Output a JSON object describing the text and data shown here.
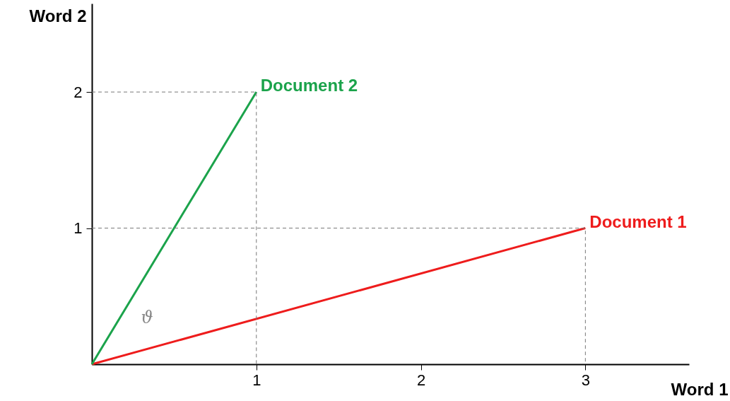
{
  "chart_data": {
    "type": "line",
    "xlabel": "Word 1",
    "ylabel": "Word 2",
    "xlim": [
      0,
      3.63
    ],
    "ylim": [
      0,
      2.65
    ],
    "xticks": [
      1,
      2,
      3
    ],
    "yticks": [
      1,
      2
    ],
    "grid": false,
    "series": [
      {
        "name": "Document 1",
        "color": "#ee1c1c",
        "line_style": "solid",
        "x": [
          0,
          3
        ],
        "values": [
          0,
          1
        ]
      },
      {
        "name": "Document 2",
        "color": "#1ba34b",
        "line_style": "solid",
        "x": [
          0,
          1
        ],
        "values": [
          0,
          2
        ]
      },
      {
        "color": "#777777",
        "line_style": "dashed",
        "x": [
          0,
          3,
          3
        ],
        "values": [
          1,
          1,
          0
        ]
      },
      {
        "color": "#777777",
        "line_style": "dashed",
        "x": [
          0,
          1,
          1
        ],
        "values": [
          2,
          2,
          0
        ]
      }
    ],
    "annotations": [
      "ϑ"
    ]
  }
}
